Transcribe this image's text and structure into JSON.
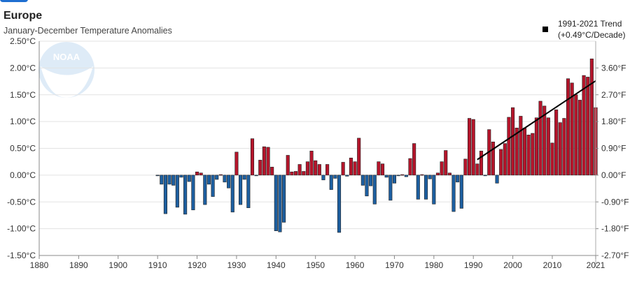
{
  "header": {
    "title": "Europe",
    "subtitle": "January-December Temperature Anomalies"
  },
  "legend": {
    "line1": "1991-2021 Trend",
    "line2": "(+0.49°C/Decade)"
  },
  "colors": {
    "positive": "#b5152b",
    "negative": "#1d5fa0",
    "trend": "#000000"
  },
  "chart_data": {
    "type": "bar",
    "title": "Europe",
    "subtitle": "January-December Temperature Anomalies",
    "xlim": [
      1880,
      2021
    ],
    "ylim": [
      -1.5,
      2.5
    ],
    "x_ticks": [
      "1880",
      "1890",
      "1900",
      "1910",
      "1920",
      "1930",
      "1940",
      "1950",
      "1960",
      "1970",
      "1980",
      "1990",
      "2000",
      "2010",
      "2021"
    ],
    "y_ticks_left": [
      "2.50°C",
      "2.00°C",
      "1.50°C",
      "1.00°C",
      "0.50°C",
      "0.00°C",
      "-0.50°C",
      "-1.00°C",
      "-1.50°C"
    ],
    "y_ticks_right": [
      "3.60°F",
      "2.70°F",
      "1.80°F",
      "0.90°F",
      "0.00°F",
      "-0.90°F",
      "-1.80°F",
      "-2.70°F"
    ],
    "start_year": 1910,
    "values": [
      -0.01,
      -0.17,
      -0.72,
      -0.17,
      -0.19,
      -0.6,
      -0.04,
      -0.73,
      -0.12,
      -0.65,
      0.06,
      0.04,
      -0.55,
      -0.17,
      -0.4,
      -0.08,
      0.01,
      -0.13,
      -0.24,
      -0.69,
      0.43,
      -0.55,
      -0.08,
      -0.61,
      0.68,
      -0.01,
      0.28,
      0.53,
      0.52,
      0.15,
      -1.04,
      -1.06,
      -0.88,
      0.37,
      0.06,
      0.07,
      0.2,
      0.07,
      0.25,
      0.45,
      0.27,
      0.2,
      -0.09,
      0.2,
      -0.27,
      -0.06,
      -1.07,
      0.24,
      -0.02,
      0.32,
      0.25,
      0.69,
      -0.19,
      -0.39,
      -0.2,
      -0.54,
      0.25,
      0.21,
      -0.04,
      -0.47,
      -0.15,
      -0.01,
      0.01,
      -0.03,
      0.31,
      0.59,
      -0.45,
      0.01,
      -0.45,
      -0.07,
      -0.54,
      0.04,
      0.25,
      0.46,
      0.04,
      -0.68,
      -0.13,
      -0.62,
      0.3,
      1.06,
      1.04,
      0.21,
      0.45,
      -0.01,
      0.85,
      0.62,
      -0.15,
      0.48,
      0.59,
      1.08,
      1.26,
      0.88,
      1.1,
      0.88,
      0.75,
      0.78,
      1.07,
      1.38,
      1.29,
      1.07,
      0.6,
      1.22,
      0.98,
      1.06,
      1.8,
      1.72,
      1.5,
      1.4,
      1.86,
      1.83,
      2.17,
      1.26
    ],
    "trend": {
      "label": "1991-2021 Trend (+0.49°C/Decade)",
      "x": [
        1991,
        2021
      ],
      "y": [
        0.29,
        1.76
      ]
    },
    "grid": true,
    "legend_position": "top-right"
  }
}
